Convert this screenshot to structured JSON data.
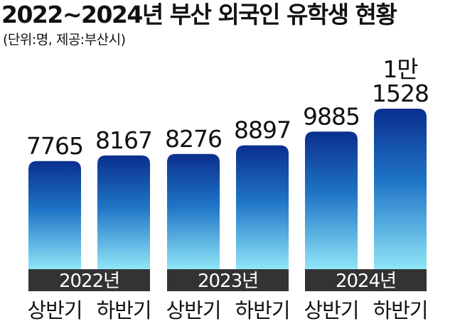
{
  "chart_data": {
    "type": "bar",
    "title": "2022~2024년 부산 외국인 유학생 현황",
    "subtitle": "(단위:명, 제공:부산시)",
    "groups": [
      "2022년",
      "2023년",
      "2024년"
    ],
    "categories": [
      "상반기",
      "하반기",
      "상반기",
      "하반기",
      "상반기",
      "하반기"
    ],
    "values": [
      7765,
      8167,
      8276,
      8897,
      9885,
      11528
    ],
    "value_labels": [
      "7765",
      "8167",
      "8276",
      "8897",
      "9885",
      "1만\n1528"
    ],
    "xlabel": "",
    "ylabel": "",
    "grid": false,
    "legend": "none",
    "colors": {
      "bar_top": "#0a2f8e",
      "bar_mid": "#1f74c6",
      "bar_bottom": "#8fe6f7",
      "group_band": "#333333",
      "group_text": "#ffffff",
      "text": "#111111"
    }
  }
}
